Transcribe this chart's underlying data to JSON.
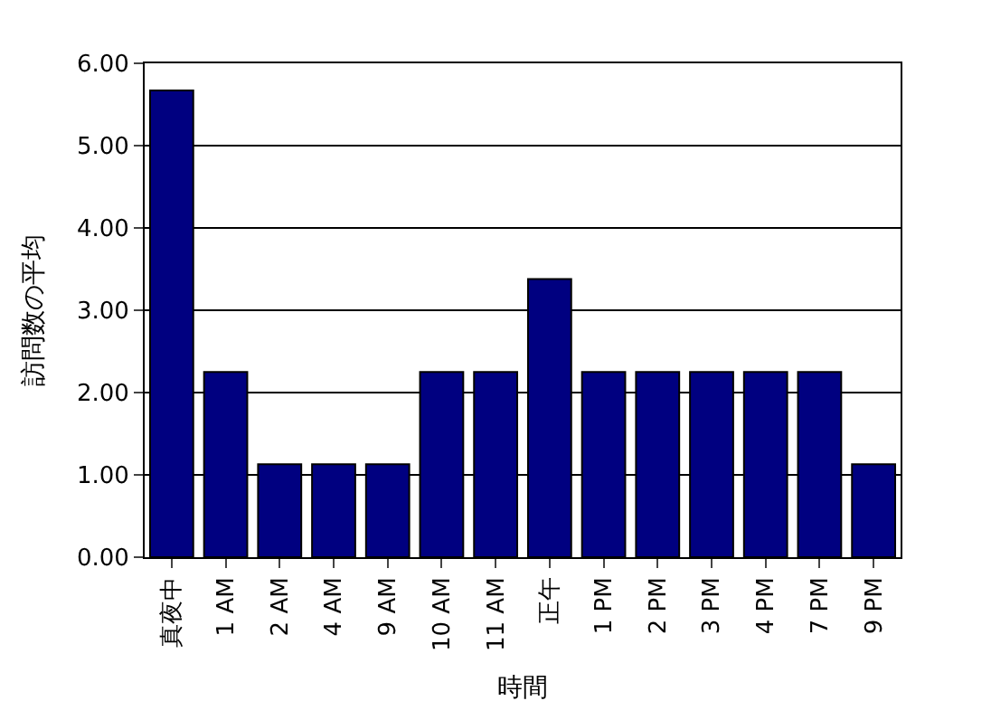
{
  "chart_data": {
    "type": "bar",
    "xlabel": "時間",
    "ylabel": "訪問数の平均",
    "categories": [
      "真夜中",
      "1 AM",
      "2 AM",
      "4 AM",
      "9 AM",
      "10 AM",
      "11 AM",
      "正午",
      "1 PM",
      "2 PM",
      "3 PM",
      "4 PM",
      "7 PM",
      "9 PM"
    ],
    "values": [
      5.67,
      2.25,
      1.13,
      1.13,
      1.13,
      2.25,
      2.25,
      3.38,
      2.25,
      2.25,
      2.25,
      2.25,
      2.25,
      1.13
    ],
    "color": "#000080",
    "ylim": [
      0,
      6
    ],
    "yticks": [
      {
        "value": 0,
        "label": "0.00"
      },
      {
        "value": 1,
        "label": "1.00"
      },
      {
        "value": 2,
        "label": "2.00"
      },
      {
        "value": 3,
        "label": "3.00"
      },
      {
        "value": 4,
        "label": "4.00"
      },
      {
        "value": 5,
        "label": "5.00"
      },
      {
        "value": 6,
        "label": "6.00"
      }
    ],
    "grid": "y"
  }
}
